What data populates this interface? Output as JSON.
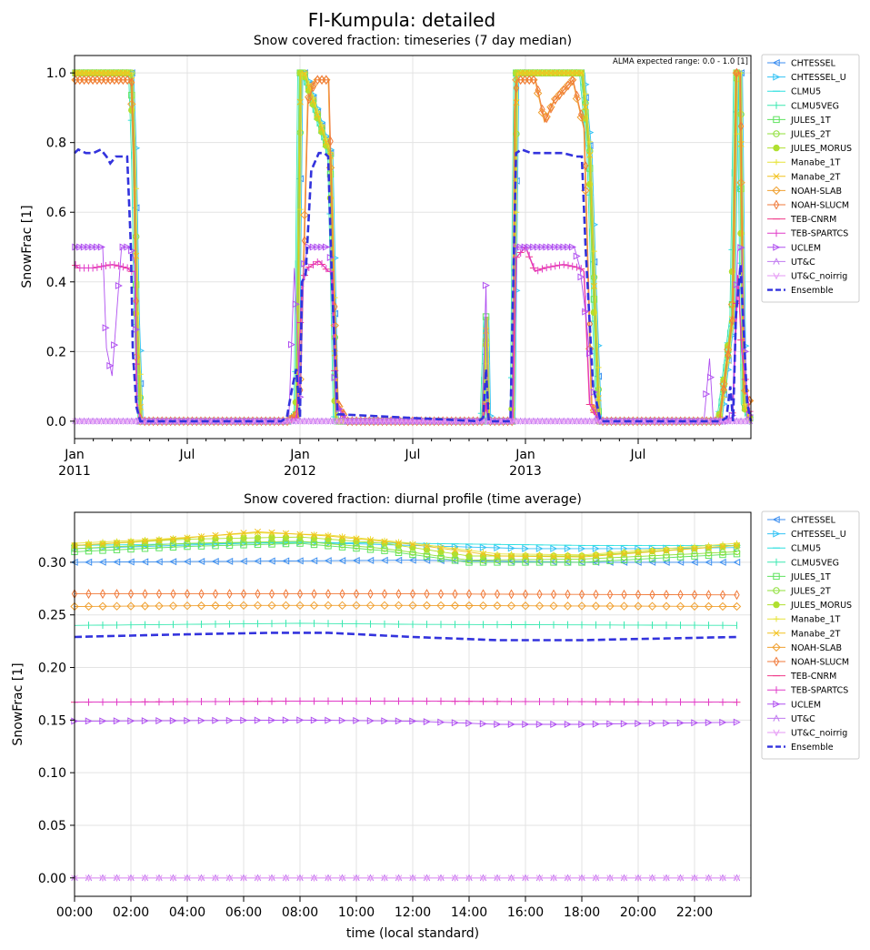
{
  "figure": {
    "title": "FI-Kumpula: detailed"
  },
  "series_styles": [
    {
      "name": "CHTESSEL",
      "color": "#3d8ff0",
      "marker": "tri-left"
    },
    {
      "name": "CHTESSEL_U",
      "color": "#33c3f5",
      "marker": "tri-right"
    },
    {
      "name": "CLMU5",
      "color": "#2ee0e0",
      "marker": "tick-h"
    },
    {
      "name": "CLMU5VEG",
      "color": "#3ae8b0",
      "marker": "tick-v"
    },
    {
      "name": "JULES_1T",
      "color": "#5fe35f",
      "marker": "square"
    },
    {
      "name": "JULES_2T",
      "color": "#8fe03a",
      "marker": "circle"
    },
    {
      "name": "JULES_MORUS",
      "color": "#b0e030",
      "marker": "star"
    },
    {
      "name": "Manabe_1T",
      "color": "#e7e43a",
      "marker": "plus"
    },
    {
      "name": "Manabe_2T",
      "color": "#f2c21f",
      "marker": "x"
    },
    {
      "name": "NOAH-SLAB",
      "color": "#f0a030",
      "marker": "diamond"
    },
    {
      "name": "NOAH-SLUCM",
      "color": "#f07a3a",
      "marker": "thin-diamond"
    },
    {
      "name": "TEB-CNRM",
      "color": "#f03a8a",
      "marker": "tick-h"
    },
    {
      "name": "TEB-SPARTCS",
      "color": "#e03ac8",
      "marker": "tick-v"
    },
    {
      "name": "UCLEM",
      "color": "#b050f0",
      "marker": "tri-right"
    },
    {
      "name": "UT&C",
      "color": "#c07af0",
      "marker": "tri-up"
    },
    {
      "name": "UT&C_noirrig",
      "color": "#e69af5",
      "marker": "tri-down"
    },
    {
      "name": "Ensemble",
      "color": "#3333dd",
      "marker": "dashed"
    }
  ],
  "chart_data": [
    {
      "type": "line",
      "title": "Snow covered fraction: timeseries (7 day median)",
      "ylabel": "SnowFrac [1]",
      "xlabel": "",
      "annotation": "ALMA expected range: 0.0 - 1.0 [1]",
      "ylim": [
        -0.05,
        1.05
      ],
      "yticks": [
        0.0,
        0.2,
        0.4,
        0.6,
        0.8,
        1.0
      ],
      "ytick_labels": [
        "0.0",
        "0.2",
        "0.4",
        "0.6",
        "0.8",
        "1.0"
      ],
      "xlim_months": [
        0,
        36
      ],
      "xticks": [
        {
          "month": 0,
          "label": "Jan",
          "sub": "2011"
        },
        {
          "month": 6,
          "label": "Jul",
          "sub": ""
        },
        {
          "month": 12,
          "label": "Jan",
          "sub": "2012"
        },
        {
          "month": 18,
          "label": "Jul",
          "sub": ""
        },
        {
          "month": 24,
          "label": "Jan",
          "sub": "2013"
        },
        {
          "month": 30,
          "label": "Jul",
          "sub": ""
        }
      ],
      "grid": true,
      "legend": "outside-right",
      "profiles": {
        "full": {
          "x": [
            0,
            3.0,
            3.15,
            3.3,
            3.5,
            11.4,
            11.8,
            12.0,
            12.2,
            13.6,
            13.9,
            14.5,
            21.7,
            21.9,
            22.0,
            23.3,
            23.4,
            23.5,
            27.0,
            27.4,
            27.6,
            27.9,
            34.3,
            35.0,
            35.2,
            35.4,
            35.6,
            36.0
          ],
          "y": [
            1.0,
            1.0,
            0.76,
            0.3,
            0.0,
            0.0,
            0.02,
            1.0,
            1.0,
            0.76,
            0.0,
            0.0,
            0.0,
            0.3,
            0.0,
            0.0,
            0.5,
            1.0,
            1.0,
            0.76,
            0.42,
            0.0,
            0.0,
            0.3,
            1.0,
            1.0,
            0.05,
            0.0
          ]
        },
        "noah": {
          "x": [
            0,
            3.0,
            3.15,
            3.3,
            3.5,
            11.4,
            11.8,
            12.0,
            12.4,
            12.8,
            13.5,
            13.8,
            14.0,
            14.5,
            21.7,
            21.9,
            22.0,
            23.3,
            23.4,
            23.5,
            24.5,
            25.0,
            25.5,
            26.5,
            27.1,
            27.5,
            27.9,
            34.3,
            35.0,
            35.2,
            35.4,
            35.6,
            36.0
          ],
          "y": [
            0.98,
            0.98,
            0.72,
            0.05,
            0.0,
            0.0,
            0.02,
            0.1,
            0.92,
            0.98,
            0.98,
            0.35,
            0.05,
            0.0,
            0.0,
            0.05,
            0.0,
            0.0,
            0.89,
            0.98,
            0.98,
            0.86,
            0.92,
            0.98,
            0.84,
            0.05,
            0.0,
            0.0,
            0.3,
            1.0,
            1.0,
            0.1,
            0.05
          ]
        },
        "teb": {
          "x": [
            0,
            0.2,
            1.0,
            2.0,
            2.8,
            3.0,
            3.2,
            3.3,
            3.5,
            11.4,
            11.8,
            12.1,
            12.4,
            13.0,
            13.5,
            13.7,
            13.9,
            14.5,
            21.7,
            21.9,
            22.0,
            23.3,
            23.5,
            24.0,
            24.5,
            25.0,
            26.0,
            26.9,
            27.1,
            27.4,
            27.9,
            34.3,
            35.0,
            35.3,
            35.5,
            36.0
          ],
          "y": [
            0.45,
            0.44,
            0.44,
            0.45,
            0.44,
            0.43,
            0.43,
            0.05,
            0.0,
            0.0,
            0.01,
            0.4,
            0.44,
            0.46,
            0.43,
            0.43,
            0.05,
            0.0,
            0.0,
            0.05,
            0.0,
            0.0,
            0.47,
            0.5,
            0.43,
            0.44,
            0.45,
            0.44,
            0.43,
            0.05,
            0.0,
            0.0,
            0.01,
            0.42,
            0.2,
            0.0
          ]
        },
        "uclem": {
          "x": [
            0,
            0.5,
            1.0,
            1.5,
            1.7,
            2.0,
            2.5,
            2.8,
            3.0,
            3.2,
            3.35,
            3.5,
            11.4,
            11.7,
            12.0,
            12.2,
            12.4,
            13.0,
            13.4,
            13.6,
            13.9,
            14.5,
            21.7,
            21.9,
            22.0,
            23.3,
            23.4,
            23.5,
            24.0,
            25.0,
            26.0,
            26.6,
            26.9,
            27.2,
            27.6,
            27.9,
            33.5,
            33.8,
            34.0,
            35.0,
            35.3,
            35.5,
            35.8,
            36.0
          ],
          "y": [
            0.5,
            0.5,
            0.5,
            0.5,
            0.21,
            0.13,
            0.5,
            0.5,
            0.5,
            0.45,
            0.05,
            0.0,
            0.0,
            0.44,
            0.05,
            0.44,
            0.5,
            0.5,
            0.5,
            0.5,
            0.05,
            0.0,
            0.0,
            0.39,
            0.0,
            0.0,
            0.45,
            0.5,
            0.5,
            0.5,
            0.5,
            0.5,
            0.44,
            0.31,
            0.1,
            0.0,
            0.0,
            0.18,
            0.0,
            0.0,
            0.49,
            0.5,
            0.05,
            0.0
          ]
        },
        "ensemble": {
          "x": [
            0,
            0.2,
            0.6,
            1.0,
            1.4,
            1.7,
            1.9,
            2.2,
            2.5,
            2.8,
            3.0,
            3.1,
            3.3,
            3.5,
            11.0,
            11.3,
            11.6,
            11.8,
            12.0,
            12.1,
            12.3,
            12.6,
            13.0,
            13.3,
            13.5,
            13.7,
            14.0,
            21.5,
            21.75,
            21.9,
            22.05,
            22.5,
            23.2,
            23.35,
            23.5,
            23.8,
            24.3,
            25.0,
            26.0,
            26.7,
            27.0,
            27.2,
            27.6,
            28.0,
            34.4,
            34.7,
            34.9,
            35.05,
            35.2,
            35.45,
            35.8,
            36.0
          ],
          "y": [
            0.77,
            0.78,
            0.77,
            0.77,
            0.78,
            0.76,
            0.74,
            0.76,
            0.76,
            0.76,
            0.5,
            0.2,
            0.04,
            0.0,
            0.0,
            0.01,
            0.1,
            0.15,
            0.01,
            0.4,
            0.42,
            0.72,
            0.77,
            0.77,
            0.76,
            0.4,
            0.02,
            0.0,
            0.01,
            0.15,
            0.0,
            0.0,
            0.0,
            0.4,
            0.77,
            0.78,
            0.77,
            0.77,
            0.77,
            0.76,
            0.76,
            0.5,
            0.1,
            0.0,
            0.0,
            0.01,
            0.1,
            0.0,
            0.3,
            0.45,
            0.05,
            0.0
          ]
        },
        "zero": {
          "x": [
            0,
            36
          ],
          "y": [
            0.0,
            0.0
          ]
        }
      },
      "series": [
        {
          "name": "CHTESSEL",
          "profile": "full",
          "shift": 0.08,
          "scale": 1.0
        },
        {
          "name": "CHTESSEL_U",
          "profile": "full",
          "shift": 0.15,
          "scale": 1.0
        },
        {
          "name": "CLMU5",
          "profile": "full",
          "shift": -0.05,
          "scale": 1.0
        },
        {
          "name": "CLMU5VEG",
          "profile": "full",
          "shift": -0.12,
          "scale": 1.0
        },
        {
          "name": "JULES_1T",
          "profile": "full",
          "shift": 0.0,
          "scale": 1.0
        },
        {
          "name": "JULES_2T",
          "profile": "full",
          "shift": 0.05,
          "scale": 1.0
        },
        {
          "name": "JULES_MORUS",
          "profile": "full",
          "shift": -0.03,
          "scale": 1.0
        },
        {
          "name": "Manabe_1T",
          "profile": "full",
          "shift": 0.1,
          "scale": 1.0
        },
        {
          "name": "Manabe_2T",
          "profile": "full",
          "shift": 0.03,
          "scale": 1.0
        },
        {
          "name": "NOAH-SLAB",
          "profile": "noah",
          "shift": 0.0,
          "scale": 1.0
        },
        {
          "name": "NOAH-SLUCM",
          "profile": "noah",
          "shift": 0.04,
          "scale": 1.0
        },
        {
          "name": "TEB-CNRM",
          "profile": "teb",
          "shift": 0.0,
          "scale": 1.0
        },
        {
          "name": "TEB-SPARTCS",
          "profile": "teb",
          "shift": 0.03,
          "scale": 1.0
        },
        {
          "name": "UCLEM",
          "profile": "uclem",
          "shift": 0.0,
          "scale": 1.0
        },
        {
          "name": "UT&C",
          "profile": "zero",
          "shift": 0.0,
          "scale": 1.0
        },
        {
          "name": "UT&C_noirrig",
          "profile": "zero",
          "shift": 0.0,
          "scale": 1.0
        },
        {
          "name": "Ensemble",
          "profile": "ensemble",
          "shift": 0.0,
          "scale": 1.0
        }
      ]
    },
    {
      "type": "line",
      "title": "Snow covered fraction: diurnal profile (time average)",
      "ylabel": "SnowFrac [1]",
      "xlabel": "time (local standard)",
      "ylim": [
        -0.0175,
        0.3475
      ],
      "yticks": [
        0.0,
        0.05,
        0.1,
        0.15,
        0.2,
        0.25,
        0.3
      ],
      "ytick_labels": [
        "0.00",
        "0.05",
        "0.10",
        "0.15",
        "0.20",
        "0.25",
        "0.30"
      ],
      "xlim_hours": [
        0,
        24
      ],
      "xticks": [
        {
          "hour": 0,
          "label": "00:00"
        },
        {
          "hour": 2,
          "label": "02:00"
        },
        {
          "hour": 4,
          "label": "04:00"
        },
        {
          "hour": 6,
          "label": "06:00"
        },
        {
          "hour": 8,
          "label": "08:00"
        },
        {
          "hour": 10,
          "label": "10:00"
        },
        {
          "hour": 12,
          "label": "12:00"
        },
        {
          "hour": 14,
          "label": "14:00"
        },
        {
          "hour": 16,
          "label": "16:00"
        },
        {
          "hour": 18,
          "label": "18:00"
        },
        {
          "hour": 20,
          "label": "20:00"
        },
        {
          "hour": 22,
          "label": "22:00"
        }
      ],
      "grid": true,
      "legend": "outside-right",
      "series": [
        {
          "name": "CHTESSEL",
          "kx": [
            0,
            6,
            12,
            18,
            23.5
          ],
          "ky": [
            0.3,
            0.301,
            0.302,
            0.3,
            0.3
          ]
        },
        {
          "name": "CHTESSEL_U",
          "kx": [
            0,
            6,
            8,
            12,
            16,
            20,
            23.5
          ],
          "ky": [
            0.313,
            0.318,
            0.319,
            0.316,
            0.313,
            0.313,
            0.314
          ]
        },
        {
          "name": "CLMU5",
          "kx": [
            0,
            8,
            12,
            18,
            23.5
          ],
          "ky": [
            0.316,
            0.319,
            0.318,
            0.316,
            0.316
          ]
        },
        {
          "name": "CLMU5VEG",
          "kx": [
            0,
            8,
            12,
            23.5
          ],
          "ky": [
            0.24,
            0.242,
            0.241,
            0.24
          ]
        },
        {
          "name": "JULES_1T",
          "kx": [
            0,
            4,
            8,
            11,
            14,
            18,
            23.5
          ],
          "ky": [
            0.31,
            0.315,
            0.318,
            0.311,
            0.3,
            0.3,
            0.308
          ]
        },
        {
          "name": "JULES_2T",
          "kx": [
            0,
            4,
            8,
            11,
            14,
            18,
            23.5
          ],
          "ky": [
            0.313,
            0.318,
            0.32,
            0.313,
            0.302,
            0.303,
            0.31
          ]
        },
        {
          "name": "JULES_MORUS",
          "kx": [
            0,
            4,
            8,
            11,
            14,
            18,
            23.5
          ],
          "ky": [
            0.316,
            0.322,
            0.324,
            0.318,
            0.306,
            0.306,
            0.316
          ]
        },
        {
          "name": "Manabe_1T",
          "kx": [
            0,
            3,
            6.5,
            9,
            12,
            15,
            18,
            23.5
          ],
          "ky": [
            0.318,
            0.322,
            0.328,
            0.326,
            0.318,
            0.308,
            0.307,
            0.318
          ]
        },
        {
          "name": "Manabe_2T",
          "kx": [
            0,
            3,
            6.5,
            9,
            12,
            15,
            18,
            23.5
          ],
          "ky": [
            0.316,
            0.321,
            0.329,
            0.325,
            0.317,
            0.306,
            0.305,
            0.316
          ]
        },
        {
          "name": "NOAH-SLAB",
          "kx": [
            0,
            6,
            12,
            23.5
          ],
          "ky": [
            0.258,
            0.259,
            0.259,
            0.258
          ]
        },
        {
          "name": "NOAH-SLUCM",
          "kx": [
            0,
            6,
            12,
            23.5
          ],
          "ky": [
            0.27,
            0.27,
            0.27,
            0.269
          ]
        },
        {
          "name": "TEB-CNRM",
          "kx": [
            0,
            8,
            12,
            23.5
          ],
          "ky": [
            0.167,
            0.168,
            0.168,
            0.167
          ]
        },
        {
          "name": "TEB-SPARTCS",
          "kx": [
            0,
            8,
            12,
            23.5
          ],
          "ky": [
            0.167,
            0.168,
            0.168,
            0.167
          ]
        },
        {
          "name": "UCLEM",
          "kx": [
            0,
            8,
            12,
            15,
            18,
            23.5
          ],
          "ky": [
            0.149,
            0.15,
            0.149,
            0.146,
            0.146,
            0.148
          ]
        },
        {
          "name": "UT&C",
          "kx": [
            0,
            23.5
          ],
          "ky": [
            0.0,
            0.0
          ]
        },
        {
          "name": "UT&C_noirrig",
          "kx": [
            0,
            23.5
          ],
          "ky": [
            0.0,
            0.0
          ]
        },
        {
          "name": "Ensemble",
          "kx": [
            0,
            3,
            7,
            9,
            12,
            15,
            18,
            23.5
          ],
          "ky": [
            0.229,
            0.231,
            0.233,
            0.233,
            0.229,
            0.226,
            0.226,
            0.229
          ]
        }
      ]
    }
  ]
}
